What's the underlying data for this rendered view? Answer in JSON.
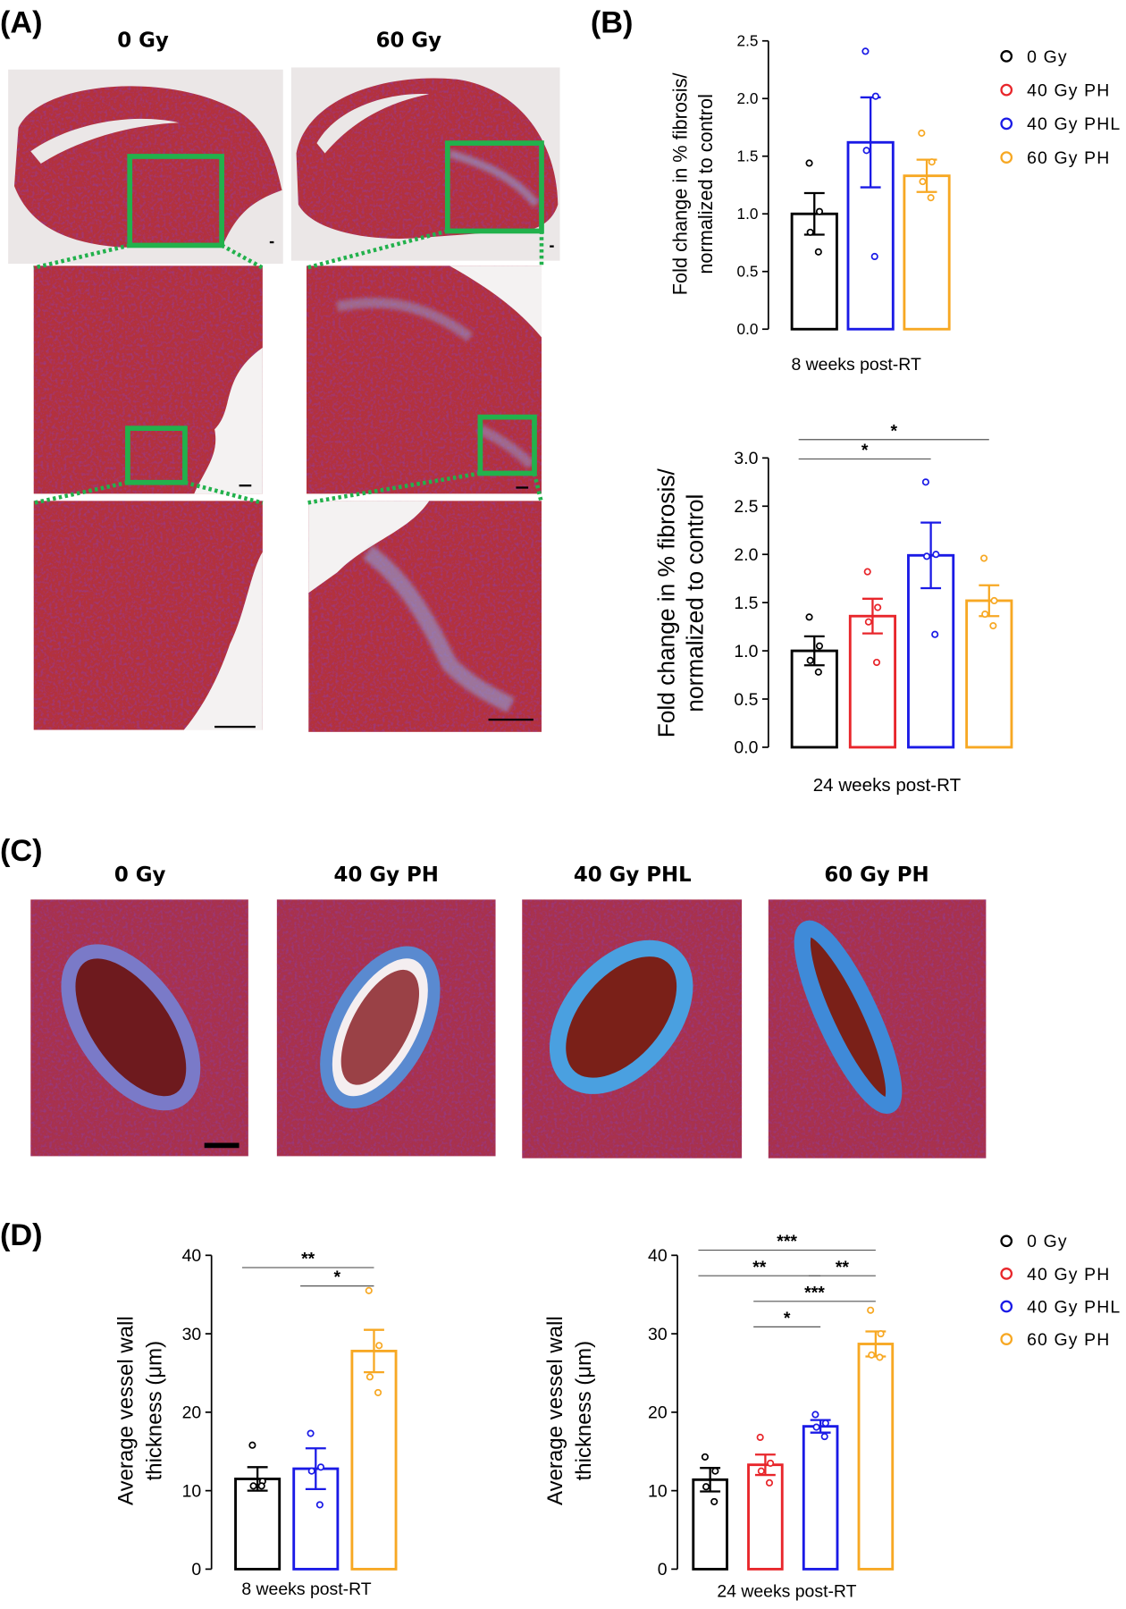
{
  "panels": {
    "A": {
      "label": "(A)",
      "columns": [
        "0 Gy",
        "60 Gy"
      ]
    },
    "B": {
      "label": "(B)"
    },
    "C": {
      "label": "(C)",
      "columns": [
        "0 Gy",
        "40 Gy PH",
        "40 Gy PHL",
        "60 Gy PH"
      ]
    },
    "D": {
      "label": "(D)"
    }
  },
  "chart_data": [
    {
      "type": "bar",
      "y_label": [
        "Fold change in % fibrosis/",
        "normalized to control"
      ],
      "x_label": "8 weeks post-RT",
      "ylim": [
        0,
        2.5
      ],
      "yticks": [
        {
          "value": 0,
          "label": "0.0"
        },
        0.5,
        {
          "value": 1,
          "label": "1.0"
        },
        1.5,
        {
          "value": 2,
          "label": "2.0"
        },
        2.5
      ],
      "series": [
        {
          "name": "0 Gy",
          "color": "#000000",
          "values": [
            1.0
          ],
          "errors": [
            0.18
          ],
          "points": [
            1.44,
            1.02,
            0.84,
            0.67
          ]
        },
        {
          "name": "40 Gy PHL",
          "color": "#1a1ae6",
          "values": [
            1.62
          ],
          "errors": [
            0.39
          ],
          "points": [
            2.41,
            2.02,
            1.55,
            0.63
          ]
        },
        {
          "name": "60 Gy PH",
          "color": "#f7a823",
          "values": [
            1.33
          ],
          "errors": [
            0.14
          ],
          "points": [
            1.7,
            1.45,
            1.28,
            1.14
          ]
        }
      ]
    },
    {
      "type": "bar",
      "y_label": [
        "Fold change in % fibrosis/",
        "normalized to control"
      ],
      "x_label": "24 weeks post-RT",
      "ylim": [
        0,
        3
      ],
      "yticks": [
        {
          "value": 0,
          "label": "0.0"
        },
        0.5,
        {
          "value": 1,
          "label": "1.0"
        },
        1.5,
        {
          "value": 2,
          "label": "2.0"
        },
        2.5,
        {
          "value": 3,
          "label": "3.0"
        }
      ],
      "series": [
        {
          "name": "0 Gy",
          "color": "#000000",
          "values": [
            1.0
          ],
          "errors": [
            0.15
          ],
          "points": [
            1.35,
            1.05,
            0.9,
            0.78
          ]
        },
        {
          "name": "40 Gy PH",
          "color": "#e8262b",
          "values": [
            1.36
          ],
          "errors": [
            0.18
          ],
          "points": [
            1.82,
            1.45,
            1.3,
            0.88
          ]
        },
        {
          "name": "40 Gy PHL",
          "color": "#1a1ae6",
          "values": [
            1.99
          ],
          "errors": [
            0.34
          ],
          "points": [
            2.75,
            2.0,
            1.98,
            1.17
          ]
        },
        {
          "name": "60 Gy PH",
          "color": "#f7a823",
          "values": [
            1.52
          ],
          "errors": [
            0.16
          ],
          "points": [
            1.96,
            1.52,
            1.38,
            1.26
          ]
        }
      ],
      "significance": [
        {
          "from": 0,
          "to": 3,
          "label": "*"
        },
        {
          "from": 0,
          "to": 2,
          "label": "*"
        }
      ]
    },
    {
      "type": "bar",
      "y_label": [
        "Average vessel wall",
        "thickness (μm)"
      ],
      "x_label": "8 weeks post-RT",
      "ylim": [
        0,
        40
      ],
      "yticks": [
        0,
        10,
        20,
        30,
        40
      ],
      "series": [
        {
          "name": "0 Gy",
          "color": "#000000",
          "values": [
            11.5
          ],
          "errors": [
            1.5
          ],
          "points": [
            15.8,
            11.2,
            10.6,
            10.6
          ]
        },
        {
          "name": "40 Gy PHL",
          "color": "#1a1ae6",
          "values": [
            12.8
          ],
          "errors": [
            2.6
          ],
          "points": [
            17.3,
            13.0,
            12.5,
            8.2
          ]
        },
        {
          "name": "60 Gy PH",
          "color": "#f7a823",
          "values": [
            27.8
          ],
          "errors": [
            2.7
          ],
          "points": [
            35.5,
            28.5,
            24.5,
            22.5
          ]
        }
      ],
      "significance": [
        {
          "from": 0,
          "to": 2,
          "label": "**"
        },
        {
          "from": 1,
          "to": 2,
          "label": "*"
        }
      ]
    },
    {
      "type": "bar",
      "y_label": [
        "Average vessel wall",
        "thickness (μm)"
      ],
      "x_label": "24 weeks post-RT",
      "ylim": [
        0,
        40
      ],
      "yticks": [
        0,
        10,
        20,
        30,
        40
      ],
      "series": [
        {
          "name": "0 Gy",
          "color": "#000000",
          "values": [
            11.4
          ],
          "errors": [
            1.5
          ],
          "points": [
            14.3,
            12.5,
            10.5,
            8.6
          ]
        },
        {
          "name": "40 Gy PH",
          "color": "#e8262b",
          "values": [
            13.3
          ],
          "errors": [
            1.3
          ],
          "points": [
            16.8,
            13.5,
            12.5,
            11.0
          ]
        },
        {
          "name": "40 Gy PHL",
          "color": "#1a1ae6",
          "values": [
            18.2
          ],
          "errors": [
            0.8
          ],
          "points": [
            19.7,
            18.6,
            18.1,
            16.9
          ]
        },
        {
          "name": "60 Gy PH",
          "color": "#f7a823",
          "values": [
            28.7
          ],
          "errors": [
            1.6
          ],
          "points": [
            33.0,
            30.0,
            27.3,
            27.0
          ]
        }
      ],
      "significance": [
        {
          "from": 0,
          "to": 3,
          "label": "***"
        },
        {
          "from": 0,
          "to": 2,
          "label": "**"
        },
        {
          "from": 2,
          "to": 3,
          "label": "**"
        },
        {
          "from": 1,
          "to": 3,
          "label": "***"
        },
        {
          "from": 1,
          "to": 2,
          "label": "*"
        }
      ]
    }
  ]
}
